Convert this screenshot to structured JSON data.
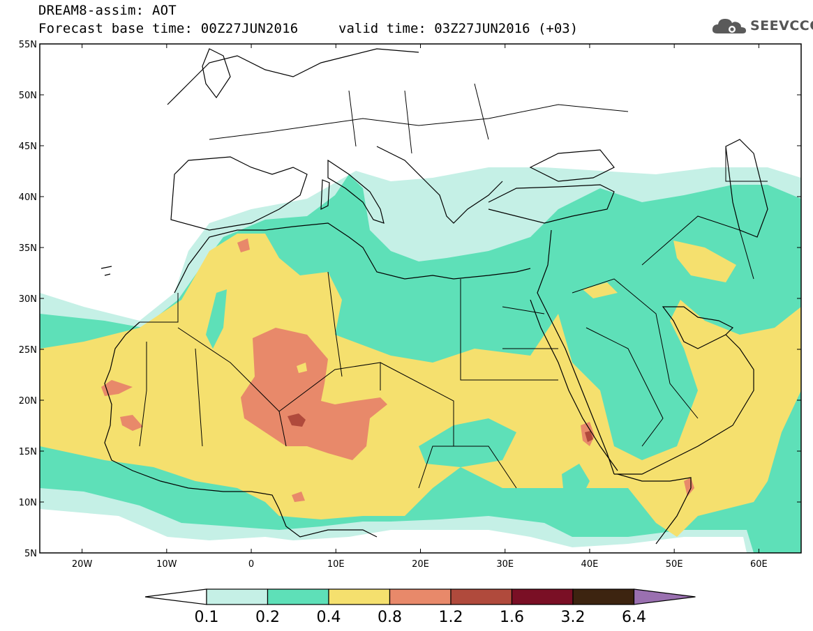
{
  "header": {
    "model_title": "DREAM8-assim: AOT",
    "base_time_label": "Forecast base time: 00Z27JUN2016",
    "valid_time_label": "valid time: 03Z27JUN2016 (+03)"
  },
  "logo": {
    "text": "SEEVCCC",
    "icon": "cloud-logo-icon"
  },
  "map": {
    "lon_range": [
      -25,
      65
    ],
    "lat_range": [
      5,
      55
    ],
    "lat_ticks": [
      "5N",
      "10N",
      "15N",
      "20N",
      "25N",
      "30N",
      "35N",
      "40N",
      "45N",
      "50N",
      "55N"
    ],
    "lon_ticks": [
      "20W",
      "10W",
      "0",
      "10E",
      "20E",
      "30E",
      "40E",
      "50E",
      "60E"
    ]
  },
  "colorbar": {
    "labels": [
      "0.1",
      "0.2",
      "0.4",
      "0.8",
      "1.2",
      "1.6",
      "3.2",
      "6.4"
    ],
    "colors": [
      "#c5f0e6",
      "#5ee0b8",
      "#f5e06e",
      "#e8896a",
      "#b04a3c",
      "#7a0f25",
      "#3d2410",
      "#9a70b0"
    ],
    "below_color": "#ffffff"
  }
}
